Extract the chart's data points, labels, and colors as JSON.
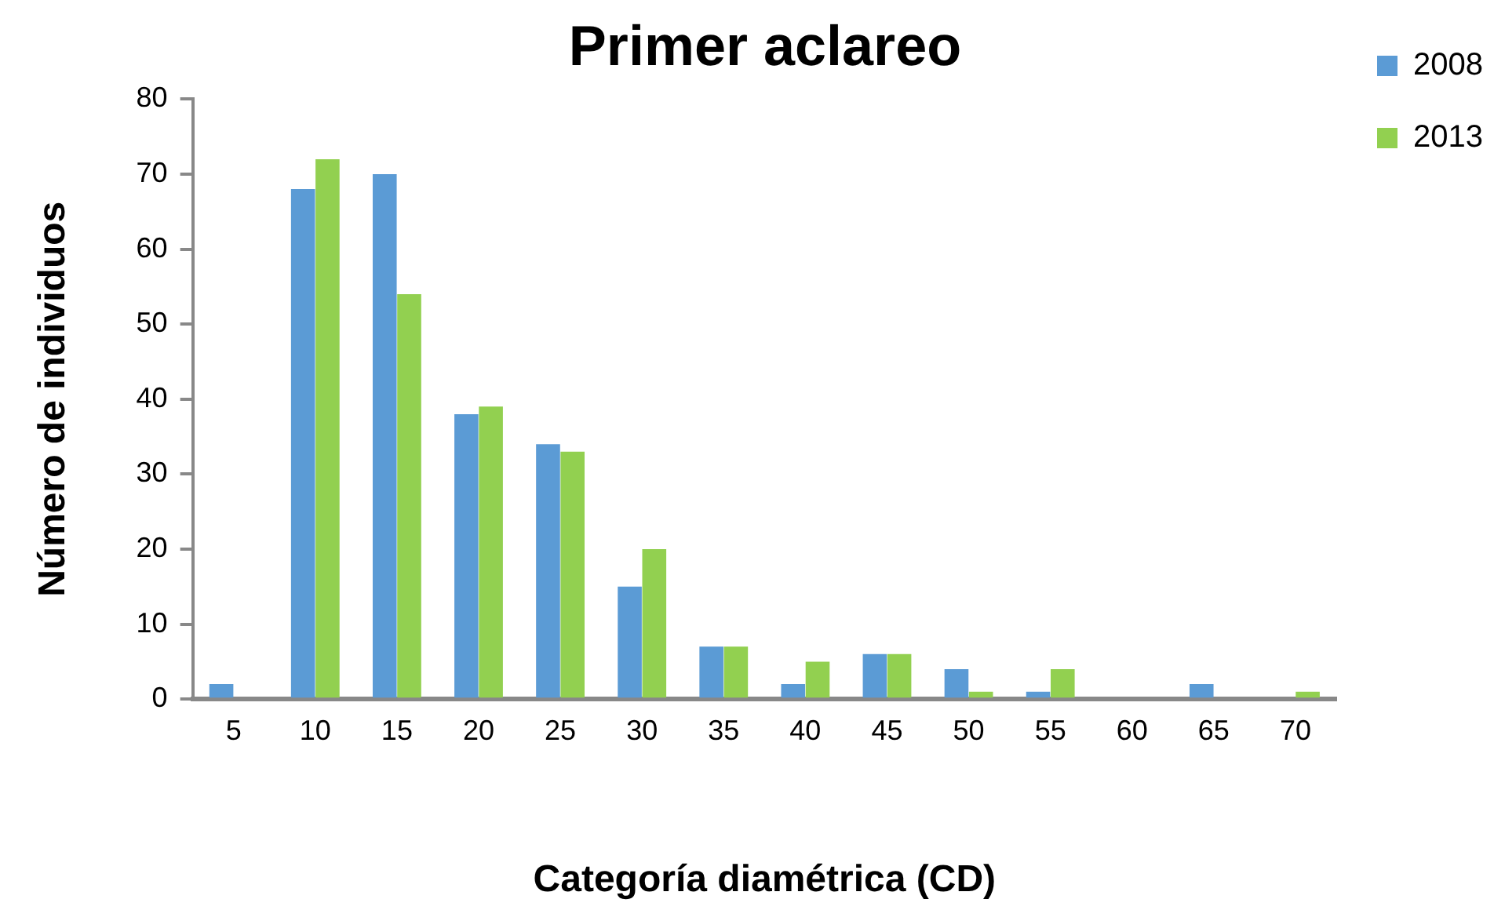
{
  "chart_data": {
    "type": "bar",
    "title": "Primer aclareo",
    "xlabel": "Categoría diamétrica (CD)",
    "ylabel": "Número de individuos",
    "categories": [
      "5",
      "10",
      "15",
      "20",
      "25",
      "30",
      "35",
      "40",
      "45",
      "50",
      "55",
      "60",
      "65",
      "70"
    ],
    "series": [
      {
        "name": "2008",
        "color": "#5b9bd5",
        "values": [
          2,
          68,
          70,
          38,
          34,
          15,
          7,
          2,
          6,
          4,
          1,
          0,
          2,
          0
        ]
      },
      {
        "name": "2013",
        "color": "#92d050",
        "values": [
          0,
          72,
          54,
          39,
          33,
          20,
          7,
          5,
          6,
          1,
          4,
          0,
          0,
          1
        ]
      }
    ],
    "ylim": [
      0,
      80
    ],
    "yticks": [
      0,
      10,
      20,
      30,
      40,
      50,
      60,
      70,
      80
    ],
    "grid": false,
    "legend": "top right"
  }
}
